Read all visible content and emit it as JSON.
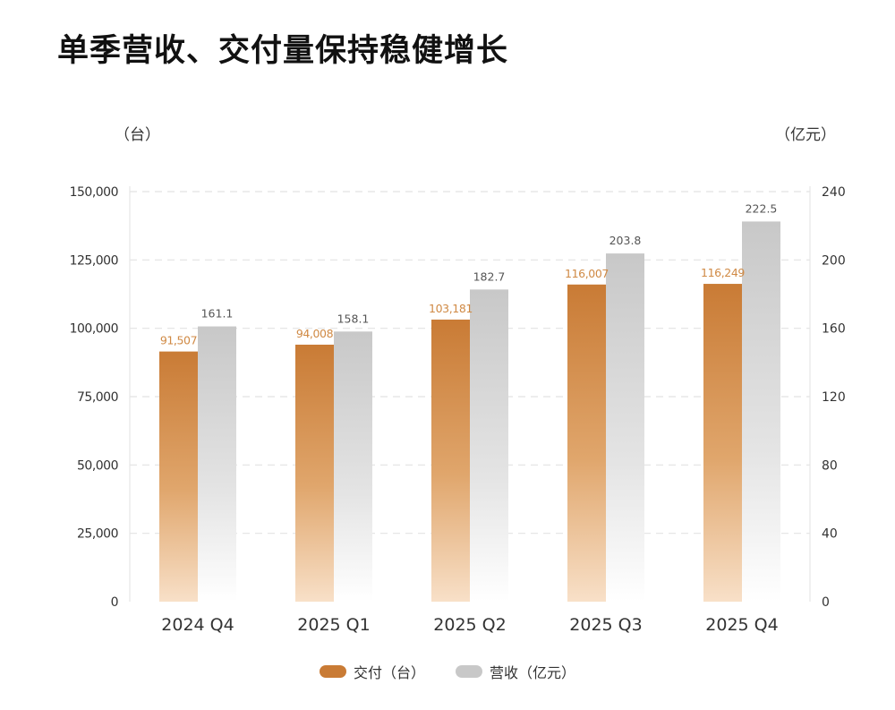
{
  "title": "单季营收、交付量保持稳健增长",
  "chart_data": {
    "type": "bar",
    "categories": [
      "2024 Q4",
      "2025 Q1",
      "2025 Q2",
      "2025 Q3",
      "2025 Q4"
    ],
    "left_axis_unit": "（台）",
    "right_axis_unit": "（亿元）",
    "left_ylim": [
      0,
      150000
    ],
    "right_ylim": [
      0,
      240
    ],
    "left_ticks": [
      "0",
      "25,000",
      "50,000",
      "75,000",
      "100,000",
      "125,000",
      "150,000"
    ],
    "right_ticks": [
      "0",
      "40",
      "80",
      "120",
      "160",
      "200",
      "240"
    ],
    "grid": true,
    "legend_position": "bottom",
    "series": [
      {
        "name": "交付（台）",
        "axis": "left",
        "color": "#C97B35",
        "values": [
          91507,
          94008,
          103181,
          116007,
          116249
        ],
        "labels": [
          "91,507",
          "94,008",
          "103,181",
          "116,007",
          "116,249"
        ]
      },
      {
        "name": "营收（亿元）",
        "axis": "right",
        "color": "#C8C8C8",
        "values": [
          161.1,
          158.1,
          182.7,
          203.8,
          222.5
        ],
        "labels": [
          "161.1",
          "158.1",
          "182.7",
          "203.8",
          "222.5"
        ]
      }
    ]
  }
}
